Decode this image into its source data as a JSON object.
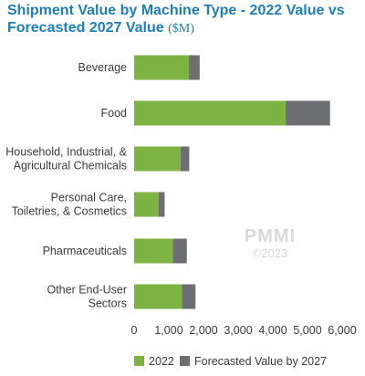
{
  "chart_data": {
    "type": "bar",
    "orientation": "horizontal",
    "stacked": true,
    "title": "Shipment Value by Machine Type - 2022 Value vs Forecasted 2027 Value",
    "title_unit": "($M)",
    "xlabel": "",
    "ylabel": "",
    "xlim": [
      0,
      6000
    ],
    "x_ticks": [
      "0",
      "1,000",
      "2,000",
      "3,000",
      "4,000",
      "5,000",
      "6,000"
    ],
    "x_tick_values": [
      0,
      1000,
      2000,
      3000,
      4000,
      5000,
      6000
    ],
    "grid": false,
    "legend_position": "bottom",
    "categories": [
      [
        "Beverage"
      ],
      [
        "Food"
      ],
      [
        "Household, Industrial, &",
        "Agricultural Chemicals"
      ],
      [
        "Personal Care,",
        "Toiletries, & Cosmetics"
      ],
      [
        "Pharmaceuticals"
      ],
      [
        "Other End-User",
        "Sectors"
      ]
    ],
    "series": [
      {
        "name": "2022",
        "color": "#7cb342",
        "values": [
          1580,
          4370,
          1340,
          710,
          1120,
          1380
        ]
      },
      {
        "name": "Forecasted Value by 2027",
        "color": "#6d6e71",
        "values": [
          310,
          1280,
          250,
          170,
          400,
          390
        ]
      }
    ]
  },
  "watermark": {
    "brand": "PMMI",
    "copyright": "©2023"
  }
}
